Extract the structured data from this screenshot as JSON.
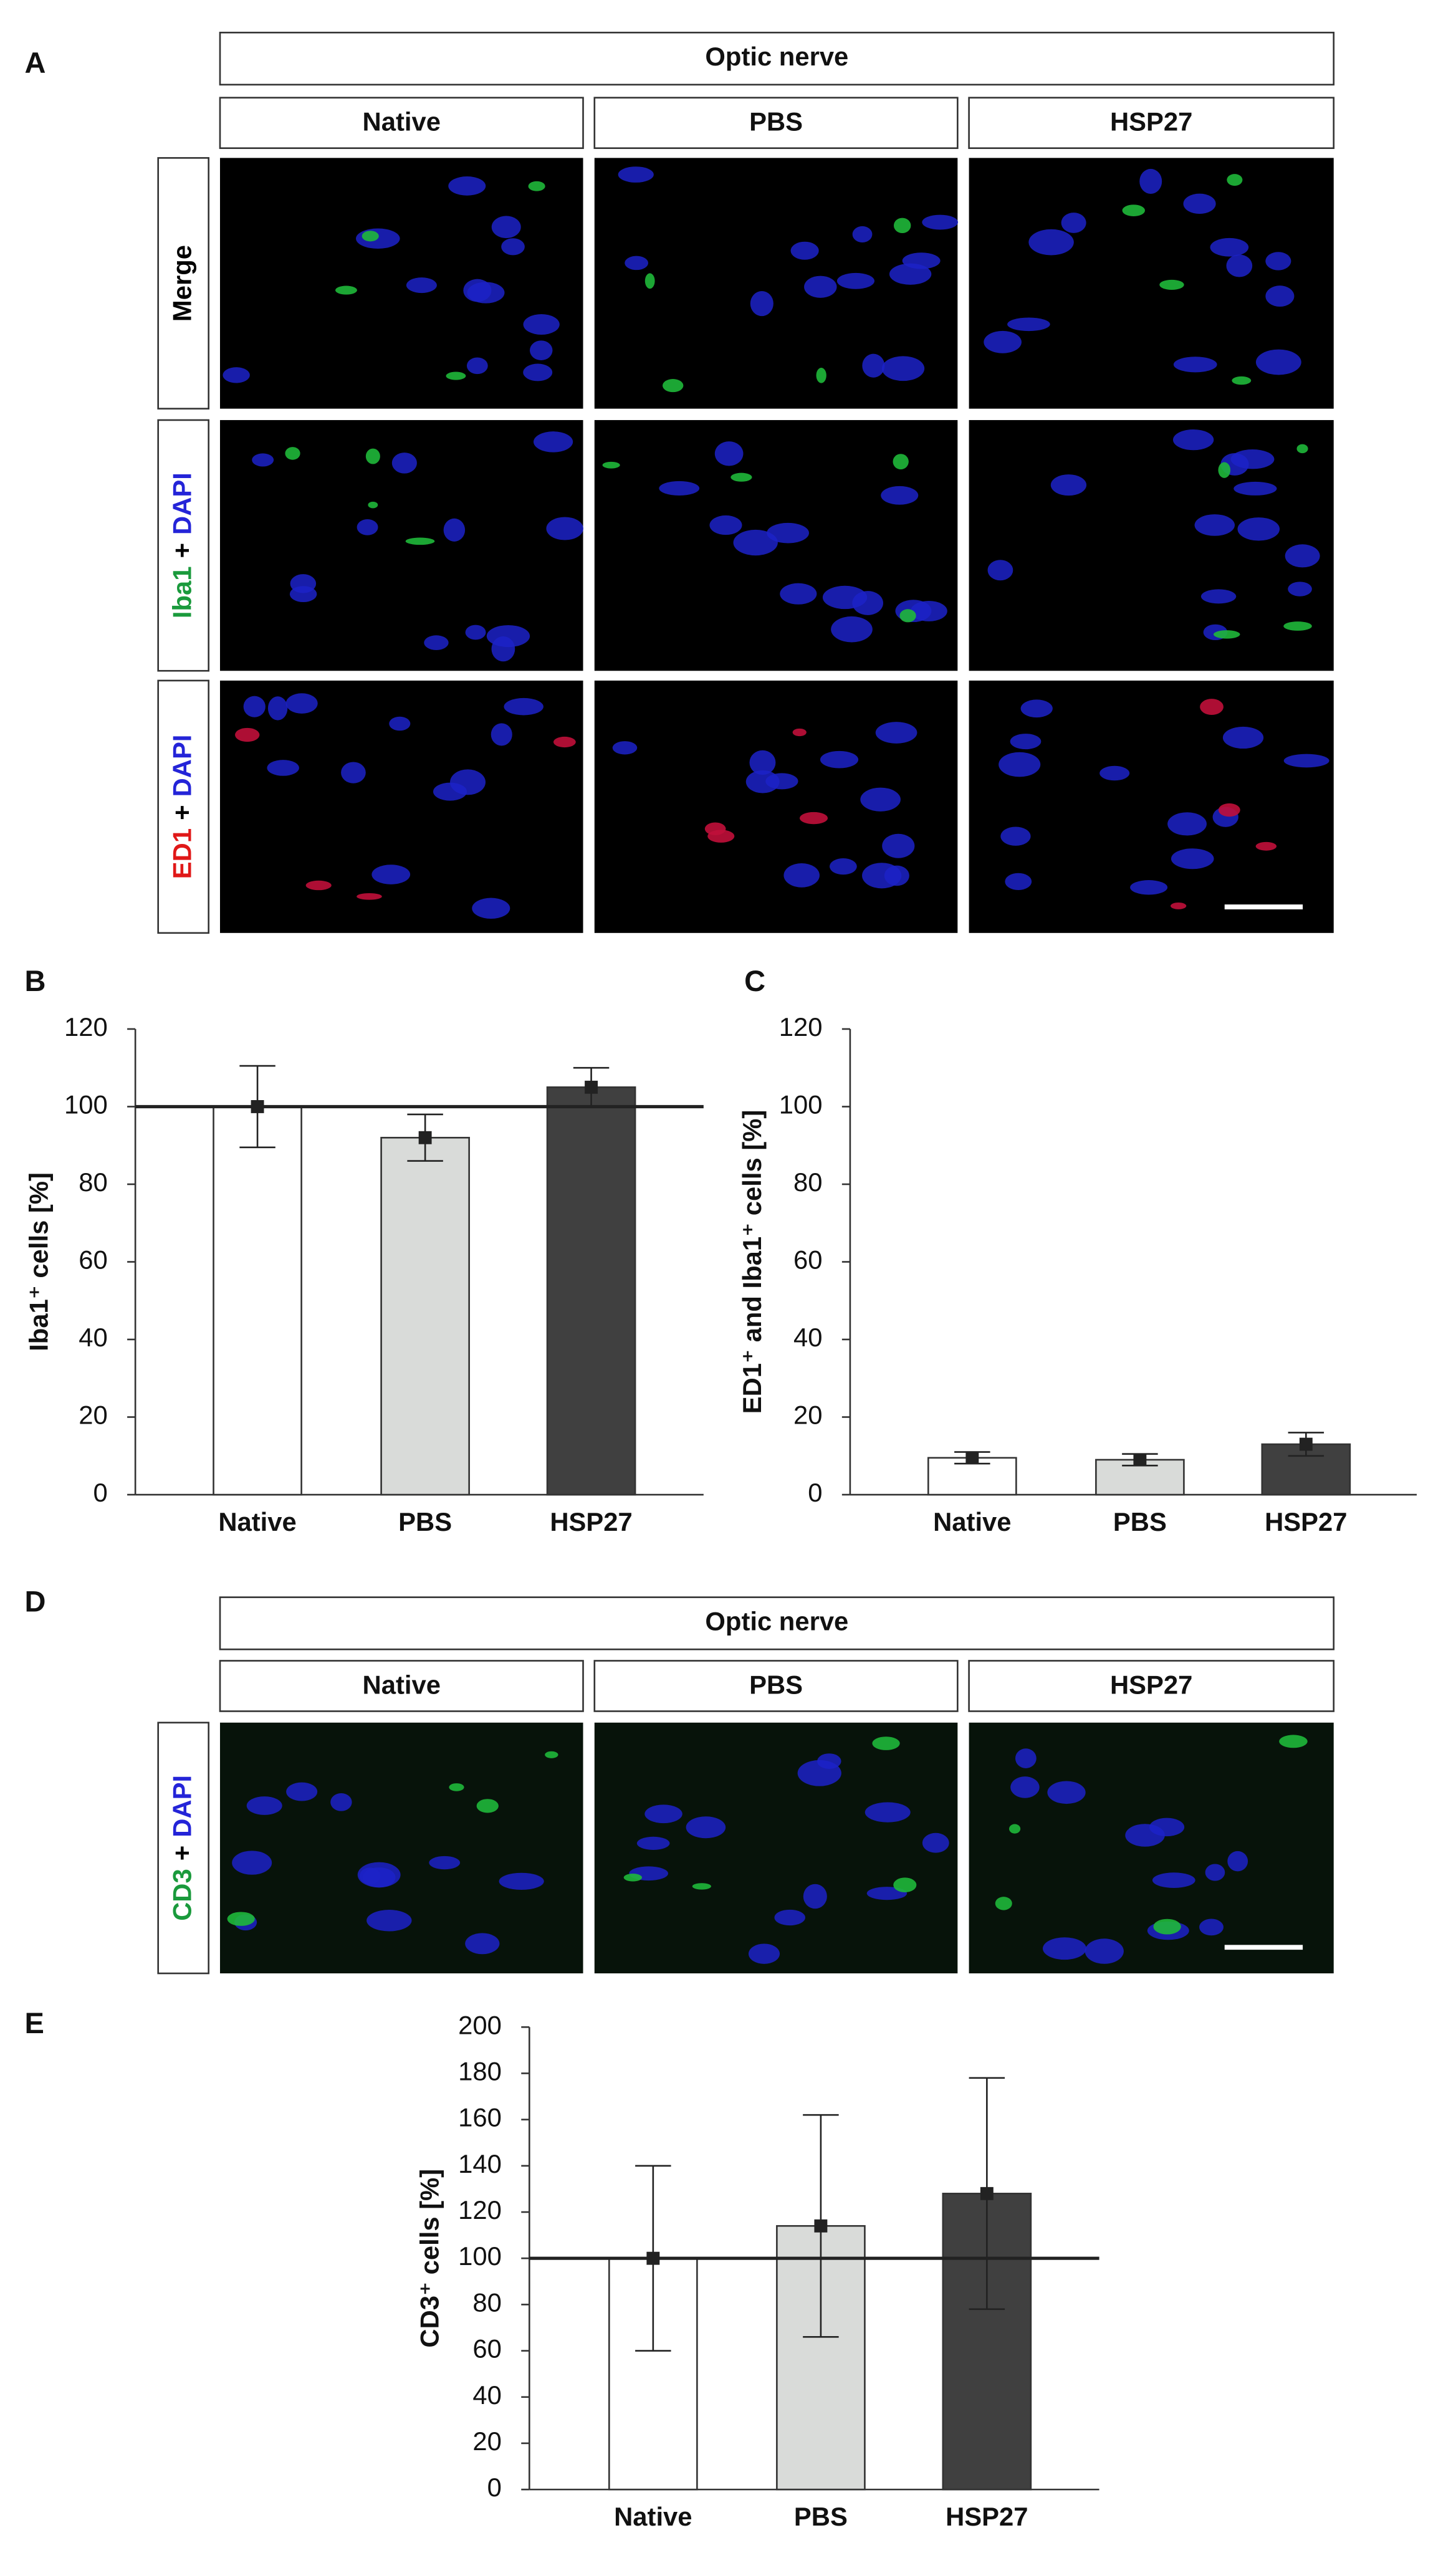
{
  "panels": {
    "letters": [
      "A",
      "B",
      "C",
      "D",
      "E"
    ],
    "a": {
      "header": "Optic nerve",
      "columns": [
        "Native",
        "PBS",
        "HSP27"
      ],
      "rows": [
        [
          {
            "text": "Merge",
            "color": "#000000"
          }
        ],
        [
          {
            "text": "Iba1",
            "color": "#1a9a3c"
          },
          {
            "text": "+",
            "color": "#000000"
          },
          {
            "text": "DAPI",
            "color": "#2424d8"
          }
        ],
        [
          {
            "text": "ED1",
            "color": "#e01818"
          },
          {
            "text": "+",
            "color": "#000000"
          },
          {
            "text": "DAPI",
            "color": "#2424d8"
          }
        ]
      ]
    },
    "d": {
      "header": "Optic nerve",
      "columns": [
        "Native",
        "PBS",
        "HSP27"
      ],
      "rows": [
        [
          {
            "text": "CD3",
            "color": "#1a9a3c"
          },
          {
            "text": "+",
            "color": "#000000"
          },
          {
            "text": "DAPI",
            "color": "#2424d8"
          }
        ]
      ]
    }
  },
  "chart_data": [
    {
      "type": "bar",
      "ylabel": "Iba1⁺ cells [%]",
      "categories": [
        "Native",
        "PBS",
        "HSP27"
      ],
      "values": [
        100,
        92,
        105
      ],
      "errors": [
        10.5,
        6,
        5
      ],
      "colors": [
        "#ffffff",
        "#d9dbd9",
        "#404040"
      ],
      "ylim": [
        0,
        120
      ],
      "yticks": [
        0,
        20,
        40,
        60,
        80,
        100,
        120
      ],
      "reference_line": 100
    },
    {
      "type": "bar",
      "ylabel": "ED1⁺ and Iba1⁺ cells [%]",
      "categories": [
        "Native",
        "PBS",
        "HSP27"
      ],
      "values": [
        9.5,
        9,
        13
      ],
      "errors": [
        1.5,
        1.5,
        3
      ],
      "colors": [
        "#ffffff",
        "#d9dbd9",
        "#404040"
      ],
      "ylim": [
        0,
        120
      ],
      "yticks": [
        0,
        20,
        40,
        60,
        80,
        100,
        120
      ]
    },
    {
      "type": "bar",
      "ylabel": "CD3⁺ cells [%]",
      "categories": [
        "Native",
        "PBS",
        "HSP27"
      ],
      "values": [
        100,
        114,
        128
      ],
      "errors": [
        40,
        48,
        50
      ],
      "colors": [
        "#ffffff",
        "#d9dbd9",
        "#404040"
      ],
      "ylim": [
        0,
        200
      ],
      "yticks": [
        0,
        20,
        40,
        60,
        80,
        100,
        120,
        140,
        160,
        180,
        200
      ],
      "reference_line": 100
    }
  ]
}
